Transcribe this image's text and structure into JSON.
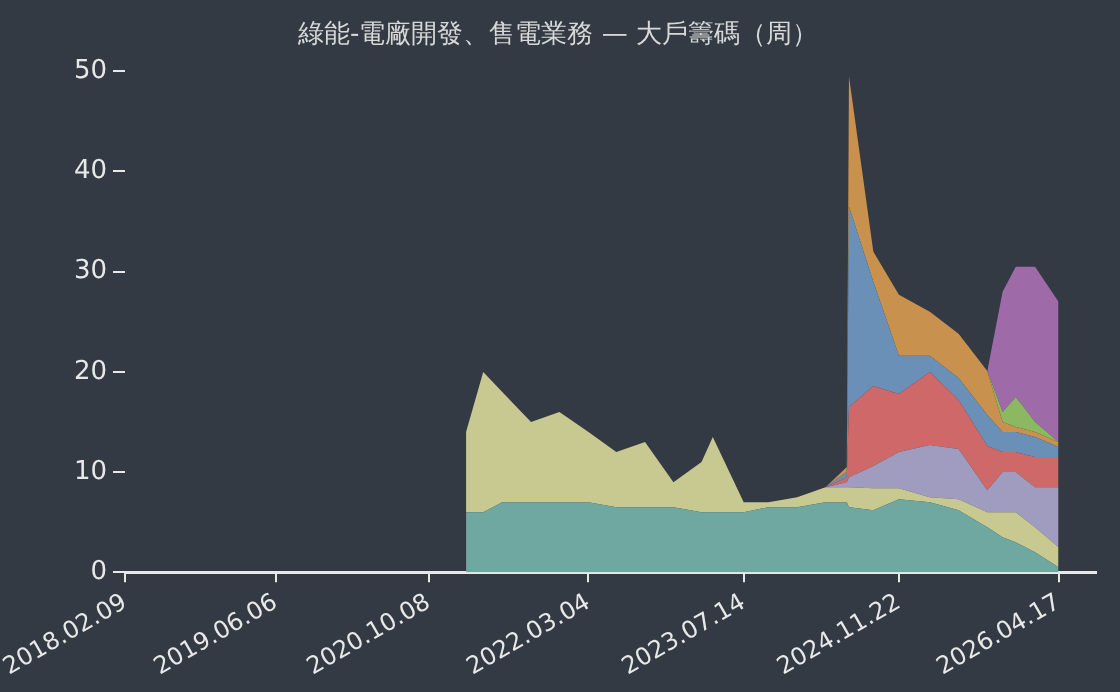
{
  "chart_data": {
    "type": "area",
    "title": "綠能-電廠開發、售電業務 — 大戶籌碼（周）",
    "stacked": true,
    "x": [
      "2021-02-05",
      "2021-04-01",
      "2021-06-01",
      "2021-09-01",
      "2021-12-01",
      "2022-03-04",
      "2022-06-01",
      "2022-09-01",
      "2022-12-01",
      "2023-03-01",
      "2023-04-06",
      "2023-07-14",
      "2023-10-01",
      "2024-01-01",
      "2024-04-01",
      "2024-06-08",
      "2024-06-15",
      "2024-09-01",
      "2024-11-22",
      "2025-03-01",
      "2025-06-01",
      "2025-09-01",
      "2025-10-20",
      "2025-12-01",
      "2026-02-01",
      "2026-04-17"
    ],
    "series": [
      {
        "color": "#6fa8a0",
        "values": [
          6,
          6,
          7,
          7,
          7,
          7,
          6.5,
          6.5,
          6.5,
          6,
          6,
          6,
          6.5,
          6.5,
          7,
          7,
          6.5,
          6.2,
          7.3,
          7,
          6.2,
          4.5,
          3.5,
          3,
          2,
          0.5
        ]
      },
      {
        "color": "#c8c991",
        "values": [
          8,
          14,
          11,
          8,
          9,
          7,
          5.5,
          6.5,
          2.5,
          5,
          7.5,
          1,
          0.5,
          1,
          1.5,
          1.5,
          2,
          2.2,
          1.1,
          0.5,
          1.1,
          1.5,
          2.5,
          3,
          2.5,
          2
        ]
      },
      {
        "color": "#a09cc0",
        "values": [
          null,
          null,
          null,
          null,
          null,
          null,
          null,
          null,
          null,
          null,
          null,
          null,
          null,
          null,
          0,
          0.5,
          1,
          2.2,
          3.6,
          5.2,
          5,
          2.2,
          4,
          4,
          4,
          6
        ]
      },
      {
        "color": "#cf6868",
        "values": [
          null,
          null,
          null,
          null,
          null,
          null,
          null,
          null,
          null,
          null,
          null,
          null,
          null,
          null,
          0,
          0.5,
          7,
          8,
          5.8,
          7.3,
          4.9,
          4.4,
          2,
          2,
          3,
          3
        ]
      },
      {
        "color": "#6a90b8",
        "values": [
          null,
          null,
          null,
          null,
          null,
          null,
          null,
          null,
          null,
          null,
          null,
          null,
          null,
          null,
          0,
          0.5,
          20,
          10.4,
          3.8,
          1.6,
          2.2,
          3.1,
          2,
          2,
          2,
          1
        ]
      },
      {
        "color": "#c8914e",
        "values": [
          null,
          null,
          null,
          null,
          null,
          null,
          null,
          null,
          null,
          null,
          null,
          null,
          null,
          null,
          0,
          0.5,
          13,
          3,
          6.1,
          4.4,
          4.4,
          4.4,
          1,
          0.5,
          0.5,
          0.5
        ]
      },
      {
        "color": "#8cb862",
        "values": [
          null,
          null,
          null,
          null,
          null,
          null,
          null,
          null,
          null,
          null,
          null,
          null,
          null,
          null,
          null,
          null,
          null,
          null,
          null,
          null,
          null,
          0,
          1,
          3,
          1,
          0
        ]
      },
      {
        "color": "#9e6aa8",
        "values": [
          null,
          null,
          null,
          null,
          null,
          null,
          null,
          null,
          null,
          null,
          null,
          null,
          null,
          null,
          null,
          null,
          null,
          null,
          null,
          null,
          null,
          0,
          12,
          13,
          15.5,
          14
        ]
      }
    ],
    "xlim": [
      "2018-02-09",
      "2026-08-15"
    ],
    "xticks": [
      {
        "value": "2018-02-09",
        "label": "2018.02.09"
      },
      {
        "value": "2019-06-06",
        "label": "2019.06.06"
      },
      {
        "value": "2020-10-08",
        "label": "2020.10.08"
      },
      {
        "value": "2022-03-04",
        "label": "2022.03.04"
      },
      {
        "value": "2023-07-14",
        "label": "2023.07.14"
      },
      {
        "value": "2024-11-22",
        "label": "2024.11.22"
      },
      {
        "value": "2026-04-17",
        "label": "2026.04.17"
      }
    ],
    "ylim": [
      0,
      50
    ],
    "yticks": [
      0,
      10,
      20,
      30,
      40,
      50
    ],
    "grid": false,
    "legend": false
  }
}
